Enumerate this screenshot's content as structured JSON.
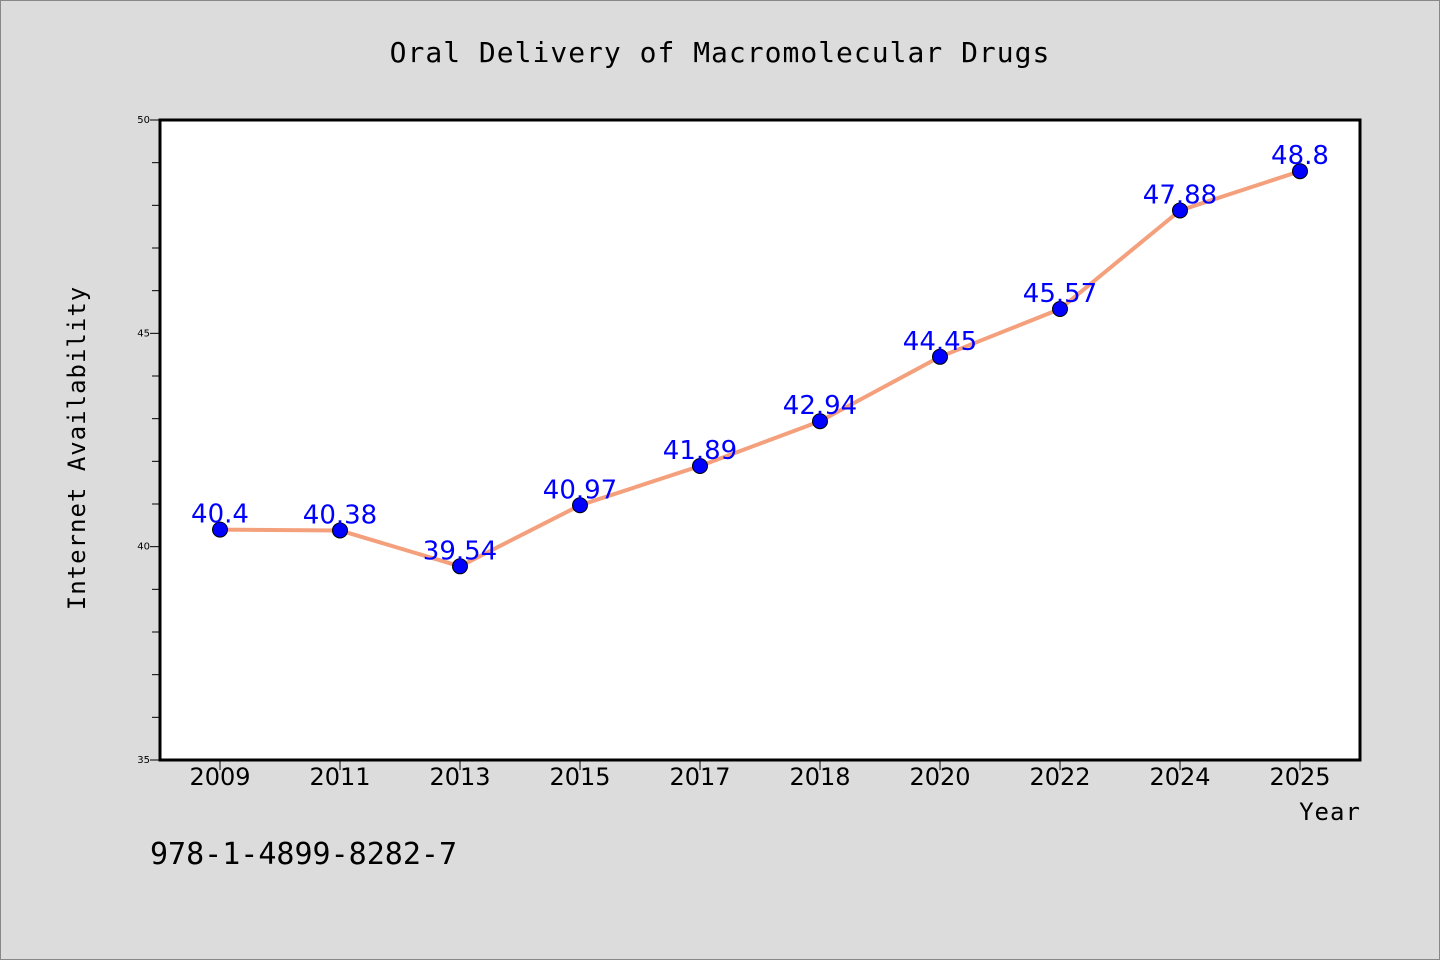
{
  "chart_data": {
    "type": "line",
    "title": "Oral Delivery of Macromolecular Drugs",
    "xlabel": "Year",
    "ylabel": "Internet Availability",
    "categories": [
      "2009",
      "2011",
      "2013",
      "2015",
      "2017",
      "2018",
      "2020",
      "2022",
      "2024",
      "2025"
    ],
    "series": [
      {
        "values": [
          40.4,
          40.38,
          39.54,
          40.97,
          41.89,
          42.94,
          44.45,
          45.57,
          47.88,
          48.8
        ],
        "labels": [
          "40.4",
          "40.38",
          "39.54",
          "40.97",
          "41.89",
          "42.94",
          "44.45",
          "45.57",
          "47.88",
          "48.8"
        ],
        "line_color": "#f4a07c",
        "marker_color": "#0000ff"
      }
    ],
    "ylim": [
      35,
      50
    ],
    "yticks": [
      "35",
      "40",
      "45",
      "50"
    ],
    "grid": false,
    "legend": "none"
  },
  "footer": {
    "isbn": "978-1-4899-8282-7"
  },
  "colors": {
    "background": "#dcdcdc",
    "plot_background": "#ffffff",
    "line": "#f4a07c",
    "marker": "#0000ff",
    "data_label": "#0000ff"
  }
}
